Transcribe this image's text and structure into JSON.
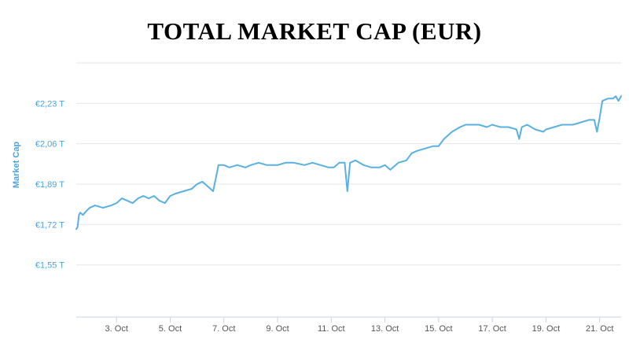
{
  "chart_data": {
    "type": "line",
    "title": "TOTAL MARKET CAP (EUR)",
    "xlabel": "",
    "ylabel": "Market Cap",
    "line_color": "#5ab0e0",
    "grid_color": "#e6e6e6",
    "y_tick_values": [
      1.55,
      1.72,
      1.89,
      2.06,
      2.23
    ],
    "y_tick_labels": [
      "€1,55 T",
      "€1,72 T",
      "€1,89 T",
      "€2,06 T",
      "€2,23 T"
    ],
    "ylim": [
      1.33,
      2.4
    ],
    "x_tick_values": [
      3,
      5,
      7,
      9,
      11,
      13,
      15,
      17,
      19,
      21
    ],
    "x_tick_labels": [
      "3. Oct",
      "5. Oct",
      "7. Oct",
      "9. Oct",
      "11. Oct",
      "13. Oct",
      "15. Oct",
      "17. Oct",
      "19. Oct",
      "21. Oct"
    ],
    "xlim": [
      1.5,
      21.8
    ],
    "series": [
      {
        "x": [
          1.5,
          1.55,
          1.6,
          1.65,
          1.75,
          1.9,
          2.0,
          2.2,
          2.5,
          2.8,
          3.0,
          3.2,
          3.4,
          3.6,
          3.8,
          4.0,
          4.2,
          4.4,
          4.6,
          4.8,
          5.0,
          5.2,
          5.5,
          5.8,
          6.0,
          6.2,
          6.4,
          6.6,
          6.8,
          7.0,
          7.2,
          7.5,
          7.8,
          8.0,
          8.3,
          8.6,
          9.0,
          9.3,
          9.6,
          10.0,
          10.3,
          10.6,
          10.9,
          11.1,
          11.3,
          11.5,
          11.6,
          11.7,
          11.9,
          12.2,
          12.5,
          12.8,
          13.0,
          13.2,
          13.5,
          13.8,
          14.0,
          14.2,
          14.5,
          14.8,
          15.0,
          15.2,
          15.5,
          15.8,
          16.0,
          16.2,
          16.5,
          16.8,
          17.0,
          17.3,
          17.6,
          17.9,
          18.0,
          18.1,
          18.3,
          18.6,
          18.9,
          19.0,
          19.3,
          19.6,
          20.0,
          20.3,
          20.6,
          20.8,
          20.9,
          21.0,
          21.1,
          21.3,
          21.5,
          21.6,
          21.7,
          21.8
        ],
        "y": [
          1.7,
          1.71,
          1.76,
          1.77,
          1.76,
          1.78,
          1.79,
          1.8,
          1.79,
          1.8,
          1.81,
          1.83,
          1.82,
          1.81,
          1.83,
          1.84,
          1.83,
          1.84,
          1.82,
          1.81,
          1.84,
          1.85,
          1.86,
          1.87,
          1.89,
          1.9,
          1.88,
          1.86,
          1.97,
          1.97,
          1.96,
          1.97,
          1.96,
          1.97,
          1.98,
          1.97,
          1.97,
          1.98,
          1.98,
          1.97,
          1.98,
          1.97,
          1.96,
          1.96,
          1.98,
          1.98,
          1.86,
          1.98,
          1.99,
          1.97,
          1.96,
          1.96,
          1.97,
          1.95,
          1.98,
          1.99,
          2.02,
          2.03,
          2.04,
          2.05,
          2.05,
          2.08,
          2.11,
          2.13,
          2.14,
          2.14,
          2.14,
          2.13,
          2.14,
          2.13,
          2.13,
          2.12,
          2.08,
          2.13,
          2.14,
          2.12,
          2.11,
          2.12,
          2.13,
          2.14,
          2.14,
          2.15,
          2.16,
          2.16,
          2.11,
          2.17,
          2.24,
          2.25,
          2.25,
          2.26,
          2.24,
          2.26
        ]
      }
    ]
  }
}
